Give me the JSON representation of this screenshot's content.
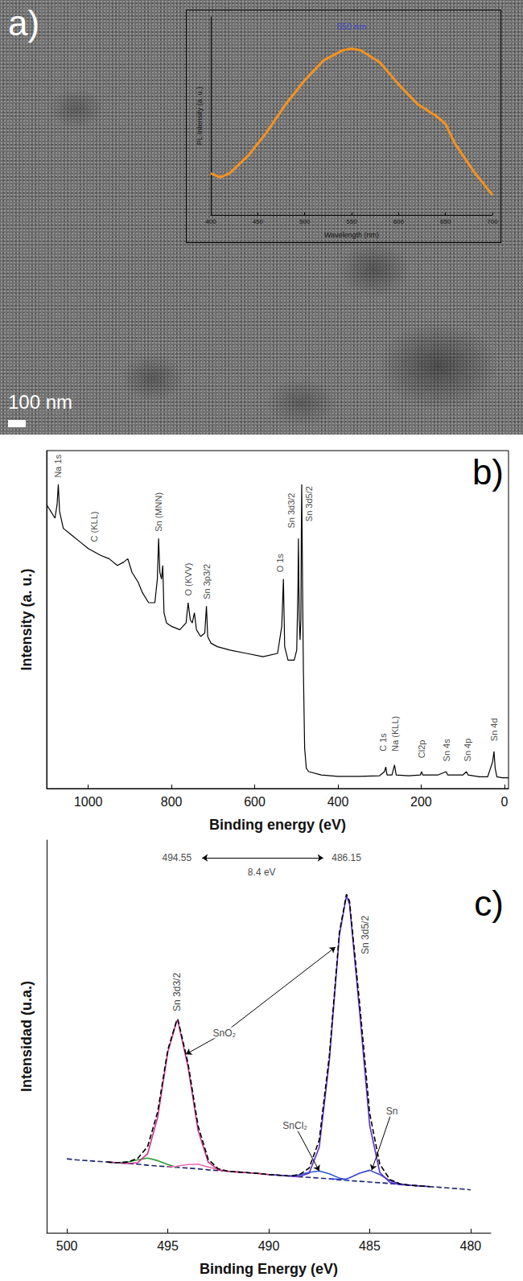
{
  "image": {
    "panel": "a)",
    "scale_bar": "100 nm"
  },
  "chart_data": [
    {
      "type": "line",
      "x_label": "Wavelength (nm)",
      "y_label": "PL Intensity (a. u.)",
      "x": [
        400,
        410,
        420,
        440,
        460,
        480,
        500,
        520,
        540,
        550,
        560,
        580,
        600,
        620,
        640,
        650,
        660,
        680,
        700
      ],
      "series": [
        {
          "color": "#f5921e",
          "line_style": "solid",
          "values": [
            0.21,
            0.19,
            0.21,
            0.3,
            0.42,
            0.56,
            0.68,
            0.78,
            0.83,
            0.84,
            0.83,
            0.77,
            0.66,
            0.56,
            0.5,
            0.46,
            0.36,
            0.22,
            0.1
          ]
        }
      ],
      "xlim": [
        400,
        700
      ],
      "xticks": [
        400,
        450,
        500,
        550,
        600,
        650,
        700
      ],
      "ylim": [
        0,
        1
      ],
      "grid": false,
      "tick_labels": "x",
      "annotations": [
        {
          "text": "550 nm",
          "x": 550,
          "y": 0.95,
          "color": "#2a3ad8"
        }
      ]
    },
    {
      "type": "line",
      "panel": "b)",
      "x_label": "Binding energy (eV)",
      "y_label": "Intensity (a. u.)",
      "x": [
        1100,
        1090,
        1080,
        1075,
        1072,
        1069,
        1060,
        1040,
        1020,
        1000,
        985,
        970,
        950,
        930,
        915,
        905,
        895,
        880,
        870,
        855,
        840,
        834,
        831,
        828,
        824,
        821,
        818,
        812,
        800,
        780,
        765,
        760,
        755,
        750,
        745,
        740,
        730,
        720,
        716,
        713,
        705,
        690,
        660,
        620,
        580,
        545,
        535,
        531,
        528,
        520,
        505,
        499,
        496,
        495,
        493,
        491,
        489,
        488,
        487,
        485,
        483,
        480,
        476,
        470,
        440,
        400,
        350,
        300,
        288,
        285,
        282,
        270,
        264,
        260,
        230,
        202,
        199,
        196,
        160,
        140,
        136,
        100,
        91,
        87,
        60,
        40,
        28,
        25,
        22,
        18,
        5,
        -10
      ],
      "series": [
        {
          "color": "#000000",
          "line_style": "solid",
          "values": [
            84,
            82,
            80,
            84,
            90,
            82,
            77,
            75,
            73,
            71,
            70,
            69,
            68,
            66,
            67,
            68,
            64,
            61,
            58,
            55,
            55,
            62,
            74,
            64,
            62,
            66,
            52,
            49,
            48,
            47,
            49,
            55,
            50,
            49,
            52,
            47,
            45,
            46,
            54,
            45,
            43,
            42,
            41,
            40,
            39,
            40,
            48,
            62,
            42,
            38,
            38,
            41,
            60,
            74,
            50,
            44,
            50,
            75,
            90,
            60,
            35,
            12,
            6,
            5,
            4,
            3.6,
            3.6,
            3.8,
            5,
            6.4,
            4,
            4,
            7,
            4,
            3.8,
            4,
            5,
            4,
            4,
            5,
            4,
            4,
            5,
            4,
            3.5,
            3.5,
            8,
            11,
            6,
            3.5,
            3.2,
            3.2
          ]
        }
      ],
      "xlim": [
        1100,
        -10
      ],
      "xticks": [
        1000,
        800,
        600,
        400,
        200,
        0
      ],
      "ylim": [
        0,
        100
      ],
      "grid": false,
      "tick_labels": "x",
      "annotations": [
        {
          "text": "Na 1s",
          "x": 1072,
          "y": 92,
          "vertical": true
        },
        {
          "text": "C (KLL)",
          "x": 985,
          "y": 73,
          "vertical": true
        },
        {
          "text": "Sn (MNN)",
          "x": 831,
          "y": 76,
          "vertical": true
        },
        {
          "text": "O (KVV)",
          "x": 760,
          "y": 57,
          "vertical": true
        },
        {
          "text": "Sn 3p3/2",
          "x": 716,
          "y": 56,
          "vertical": true
        },
        {
          "text": "O 1s",
          "x": 540,
          "y": 64,
          "vertical": true
        },
        {
          "text": "Sn 3d3/2",
          "x": 512,
          "y": 77,
          "vertical": true
        },
        {
          "text": "Sn 3d5/2",
          "x": 470,
          "y": 79,
          "vertical": true
        },
        {
          "text": "C 1s",
          "x": 292,
          "y": 11,
          "vertical": true
        },
        {
          "text": "Na (KLL)",
          "x": 262,
          "y": 11,
          "vertical": true
        },
        {
          "text": "Cl2p",
          "x": 199,
          "y": 9,
          "vertical": true
        },
        {
          "text": "Sn 4s",
          "x": 138,
          "y": 8,
          "vertical": true
        },
        {
          "text": "Sn 4p",
          "x": 89,
          "y": 8,
          "vertical": true
        },
        {
          "text": "Sn 4d",
          "x": 25,
          "y": 14,
          "vertical": true
        }
      ]
    },
    {
      "type": "line",
      "panel": "c)",
      "x_label": "Binding Energy (eV)",
      "y_label": "Intensidad (u.a.)",
      "x": [
        500,
        499.5,
        499,
        498.5,
        498,
        497.5,
        497,
        496.5,
        496,
        495.5,
        495,
        494.55,
        494.5,
        494,
        493.5,
        493,
        492.5,
        492,
        491.5,
        491,
        490.5,
        490,
        489.5,
        489,
        488.5,
        488,
        487.5,
        487,
        486.5,
        486.15,
        486,
        485.5,
        485,
        484.5,
        484,
        483.5,
        483,
        482.5,
        482,
        481.5,
        481,
        480.5,
        480
      ],
      "series": [
        {
          "color": "#1a2470",
          "line_style": "dashed",
          "values": [
            20.7,
            20.4,
            20.2,
            20.0,
            19.8,
            19.6,
            19.4,
            19.2,
            18.9,
            18.7,
            18.5,
            18.3,
            18.3,
            18.1,
            17.9,
            17.6,
            17.4,
            17.2,
            17.0,
            16.8,
            16.6,
            16.3,
            16.1,
            15.9,
            15.7,
            15.5,
            15.3,
            15.1,
            14.8,
            14.7,
            14.6,
            14.4,
            14.2,
            14.0,
            13.8,
            13.5,
            13.3,
            13.1,
            12.9,
            12.7,
            12.5,
            12.3,
            12.0
          ]
        },
        {
          "color": "#2e9b3a",
          "line_style": "solid",
          "values": [
            null,
            null,
            null,
            null,
            null,
            19.6,
            19.8,
            20.4,
            20.9,
            20.2,
            19.1,
            18.3,
            null,
            null,
            null,
            null,
            null,
            null,
            null,
            null,
            null,
            null,
            null,
            null,
            null,
            null,
            null,
            null,
            null,
            null,
            null,
            null,
            null,
            null,
            null,
            null,
            null,
            null,
            null,
            null,
            null,
            null,
            null
          ]
        },
        {
          "color": "#e96fb0",
          "line_style": "solid",
          "values": [
            null,
            null,
            null,
            null,
            null,
            null,
            null,
            null,
            null,
            null,
            18.5,
            18.6,
            18.7,
            19.1,
            19.2,
            18.4,
            17.7,
            17.2,
            null,
            null,
            null,
            null,
            null,
            null,
            null,
            null,
            null,
            null,
            null,
            null,
            null,
            null,
            null,
            null,
            null,
            null,
            null,
            null,
            null,
            null,
            null,
            null,
            null
          ]
        },
        {
          "color": "#2b57d8",
          "line_style": "solid",
          "values": [
            null,
            null,
            null,
            null,
            null,
            null,
            null,
            null,
            null,
            null,
            null,
            null,
            null,
            null,
            null,
            null,
            null,
            null,
            null,
            null,
            null,
            null,
            null,
            15.9,
            16.2,
            16.9,
            17.3,
            16.5,
            15.3,
            14.7,
            14.6,
            null,
            null,
            null,
            null,
            null,
            null,
            null,
            null,
            null,
            null,
            null,
            null
          ]
        },
        {
          "color": "#3344cc",
          "line_style": "solid",
          "values": [
            null,
            null,
            null,
            null,
            null,
            null,
            null,
            null,
            null,
            null,
            null,
            null,
            null,
            null,
            null,
            null,
            null,
            null,
            null,
            null,
            null,
            null,
            null,
            null,
            null,
            null,
            null,
            15.1,
            15.0,
            15.1,
            15.4,
            16.7,
            17.5,
            16.3,
            14.6,
            13.7,
            13.3,
            null,
            null,
            null,
            null,
            null,
            null
          ]
        },
        {
          "color": "#d0338f",
          "line_style": "solid",
          "values": [
            null,
            null,
            null,
            null,
            19.8,
            19.6,
            19.4,
            19.6,
            22.1,
            32.4,
            50.6,
            59.4,
            59.3,
            46.5,
            28.6,
            19.8,
            17.6,
            17.2,
            17.0,
            16.8,
            16.6,
            16.3,
            null,
            null,
            null,
            null,
            null,
            null,
            null,
            null,
            null,
            null,
            null,
            null,
            null,
            null,
            null,
            null,
            null,
            null,
            null,
            null,
            null
          ]
        },
        {
          "color": "#5b2fd1",
          "line_style": "solid",
          "values": [
            null,
            null,
            null,
            null,
            null,
            null,
            null,
            null,
            null,
            null,
            null,
            null,
            null,
            null,
            null,
            null,
            null,
            null,
            null,
            null,
            null,
            16.3,
            16.1,
            15.9,
            15.7,
            16.7,
            23.9,
            48.1,
            83.4,
            94.4,
            92.1,
            62.0,
            30.1,
            16.9,
            14.1,
            13.5,
            13.3,
            13.1,
            12.9,
            null,
            null,
            null,
            null
          ]
        },
        {
          "color": "#000000",
          "line_style": "dashed",
          "values": [
            null,
            null,
            null,
            null,
            19.8,
            19.6,
            19.8,
            20.8,
            24.1,
            33.9,
            51.2,
            59.7,
            59.7,
            47.5,
            29.9,
            20.6,
            17.9,
            17.2,
            17.0,
            16.8,
            16.6,
            16.3,
            16.1,
            15.9,
            16.2,
            18.1,
            25.9,
            49.5,
            84.1,
            94.8,
            92.9,
            64.3,
            33.4,
            19.2,
            14.9,
            13.7,
            13.3,
            13.1,
            12.9,
            null,
            null,
            null,
            null
          ]
        }
      ],
      "xlim": [
        501,
        479
      ],
      "xticks": [
        500,
        495,
        490,
        485,
        480
      ],
      "ylim": [
        0,
        110
      ],
      "grid": false,
      "tick_labels": "x",
      "annotations": [
        {
          "text": "494.55",
          "x": 494.55,
          "y": 105
        },
        {
          "text": "486.15",
          "x": 486.15,
          "y": 105
        },
        {
          "text": "8.4 eV",
          "x": 490.35,
          "y": 101,
          "span": [
            [
              493.3,
              105
            ],
            [
              487.3,
              105
            ]
          ]
        },
        {
          "text": "Sn 3d3/2",
          "x": 494.55,
          "y": 62,
          "vertical": true
        },
        {
          "text": "Sn 3d5/2",
          "x": 485.2,
          "y": 78,
          "vertical": true
        },
        {
          "text": "SnO₂",
          "x": 492.2,
          "y": 56,
          "arrow_to": [
            [
              494.1,
              50
            ],
            [
              486.7,
              80
            ]
          ]
        },
        {
          "text": "SnCl₂",
          "x": 488.7,
          "y": 30,
          "arrow_to": [
            [
              487.5,
              17.3
            ]
          ]
        },
        {
          "text": "Sn",
          "x": 483.9,
          "y": 34,
          "arrow_to": [
            [
              484.9,
              17.5
            ]
          ]
        }
      ]
    }
  ]
}
